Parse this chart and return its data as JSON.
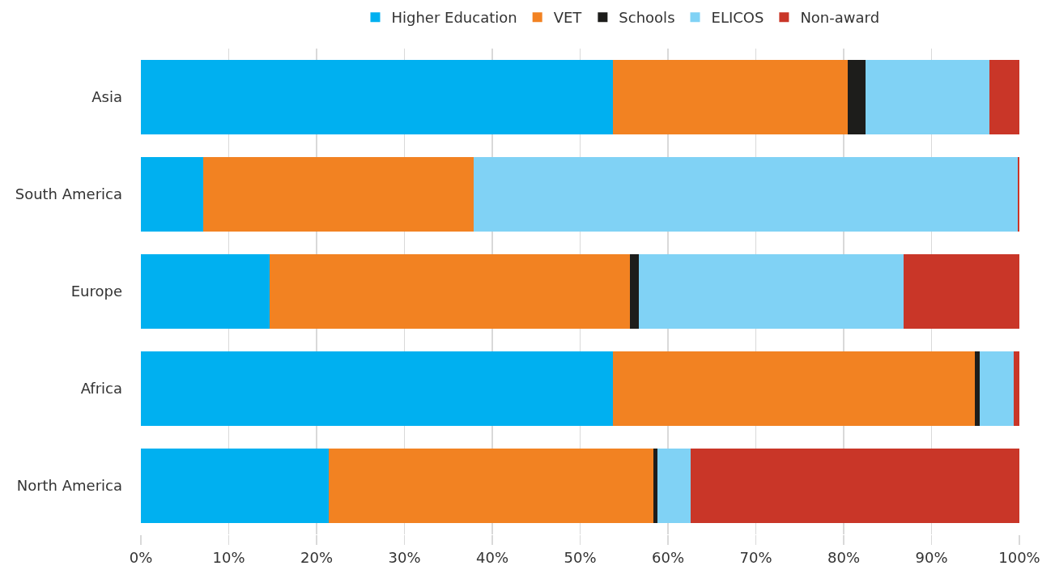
{
  "chart_data": {
    "type": "bar",
    "orientation": "horizontal",
    "stacked": true,
    "categories": [
      "Asia",
      "South America",
      "Europe",
      "Africa",
      "North America"
    ],
    "series": [
      {
        "name": "Higher Education",
        "color": "#00b0f0",
        "values": [
          53.7,
          7.1,
          14.7,
          53.7,
          21.4
        ]
      },
      {
        "name": "VET",
        "color": "#f28222",
        "values": [
          26.8,
          30.8,
          41.0,
          41.2,
          36.9
        ]
      },
      {
        "name": "Schools",
        "color": "#1d1d1b",
        "values": [
          2.0,
          0,
          1.0,
          0.6,
          0.5
        ]
      },
      {
        "name": "ELICOS",
        "color": "#80d2f5",
        "values": [
          14.1,
          61.9,
          30.1,
          3.9,
          3.8
        ]
      },
      {
        "name": "Non-award",
        "color": "#c93628",
        "values": [
          3.4,
          0.2,
          13.2,
          0.6,
          37.4
        ]
      }
    ],
    "xlim": [
      0,
      100
    ],
    "xticks": [
      {
        "value": 0,
        "label": "0%"
      },
      {
        "value": 10,
        "label": "10%"
      },
      {
        "value": 20,
        "label": "20%"
      },
      {
        "value": 30,
        "label": "30%"
      },
      {
        "value": 40,
        "label": "40%"
      },
      {
        "value": 50,
        "label": "50%"
      },
      {
        "value": 60,
        "label": "60%"
      },
      {
        "value": 70,
        "label": "70%"
      },
      {
        "value": 80,
        "label": "80%"
      },
      {
        "value": 90,
        "label": "90%"
      },
      {
        "value": 100,
        "label": "100%"
      }
    ],
    "grid": "x",
    "legend": "top"
  }
}
